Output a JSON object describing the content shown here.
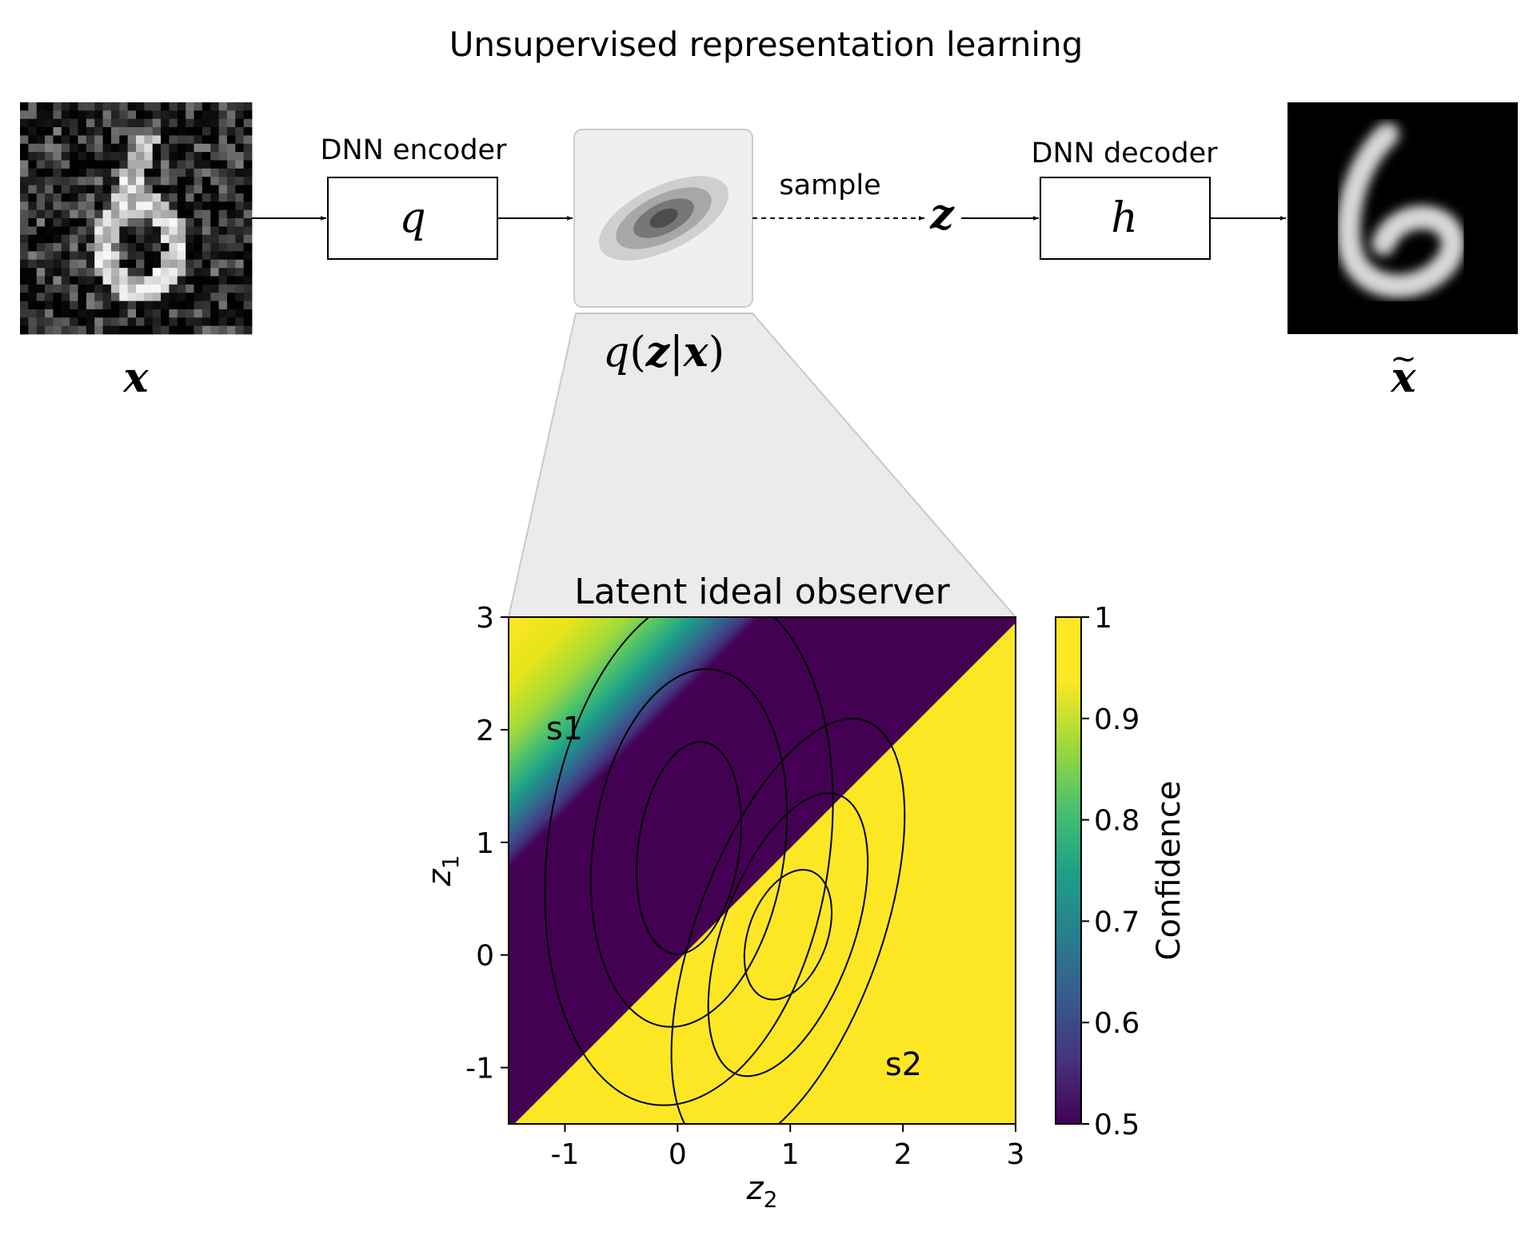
{
  "title": "Unsupervised representation learning",
  "input_label": "x",
  "output_label": "x",
  "output_label_accent": "~",
  "encoder": {
    "caption": "DNN encoder",
    "symbol": "q"
  },
  "decoder": {
    "caption": "DNN decoder",
    "symbol": "h"
  },
  "posterior": {
    "q": "q",
    "paren_open": "(",
    "z": "z",
    "bar": "|",
    "x": "x",
    "paren_close": ")"
  },
  "sample_label": "sample",
  "latent_label": "z",
  "colors": {
    "arrow": "#000000",
    "panel": "#efefef",
    "panel_border": "#cccccc",
    "zoom": "#ebebeb"
  },
  "chart_data": {
    "type": "heatmap",
    "title": "Latent ideal observer",
    "xlabel": "z",
    "xlabel_sub": "2",
    "ylabel": "z",
    "ylabel_sub": "1",
    "xlim": [
      -1.5,
      3
    ],
    "ylim": [
      -1.5,
      3
    ],
    "xticks": [
      -1,
      0,
      1,
      2,
      3
    ],
    "yticks": [
      -1,
      0,
      1,
      2,
      3
    ],
    "xtick_labels": [
      "-1",
      "0",
      "1",
      "2",
      "3"
    ],
    "ytick_labels": [
      "-1",
      "0",
      "1",
      "2",
      "3"
    ],
    "colormap": "viridis",
    "colorbar": {
      "label": "Confidence",
      "range": [
        0.5,
        1
      ],
      "ticks": [
        "0.5",
        "0.6",
        "0.7",
        "0.8",
        "0.9",
        "1"
      ]
    },
    "annotations": [
      "s1",
      "s2"
    ],
    "contour_sets": [
      {
        "name": "s1",
        "ellipses": [
          {
            "center": [
              0.1,
              0.95
            ],
            "semi_axes": [
              0.45,
              0.95
            ]
          },
          {
            "center": [
              0.1,
              0.95
            ],
            "semi_axes": [
              0.85,
              1.6
            ]
          },
          {
            "center": [
              0.1,
              0.95
            ],
            "semi_axes": [
              1.25,
              2.3
            ]
          }
        ]
      },
      {
        "name": "s2",
        "ellipses": [
          {
            "center": [
              0.98,
              0.18
            ],
            "semi_axes": [
              0.35,
              0.6
            ]
          },
          {
            "center": [
              0.98,
              0.18
            ],
            "semi_axes": [
              0.58,
              1.32
            ]
          },
          {
            "center": [
              0.98,
              0.18
            ],
            "semi_axes": [
              0.82,
              2.02
            ]
          }
        ]
      }
    ]
  }
}
